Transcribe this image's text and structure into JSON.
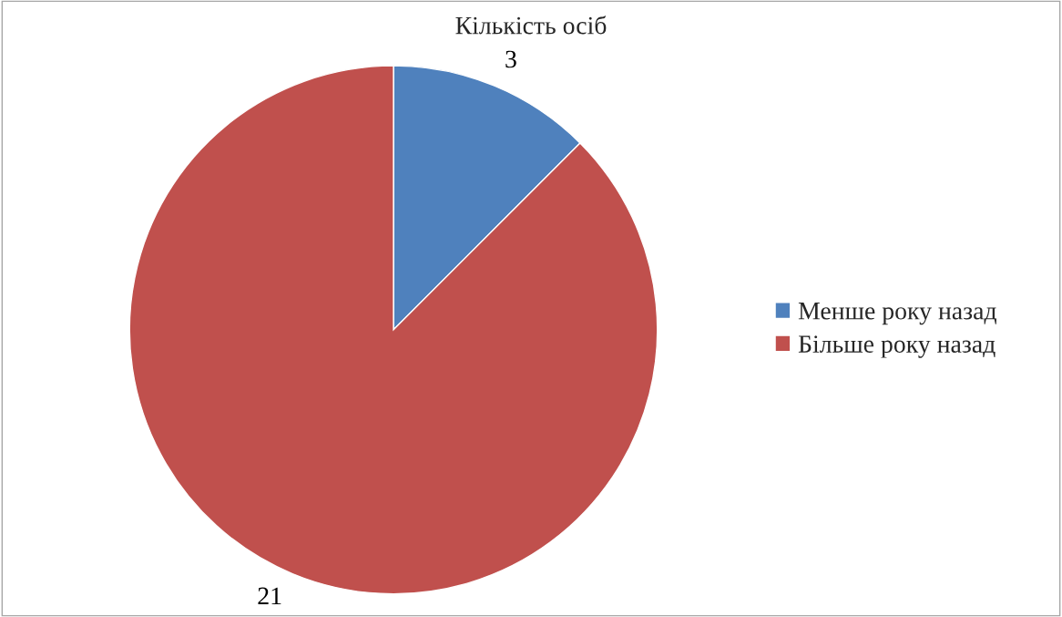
{
  "chart_data": {
    "type": "pie",
    "title": "Кількість осіб",
    "categories": [
      "Менше року назад",
      "Більше року назад"
    ],
    "values": [
      3,
      21
    ],
    "colors": [
      "#4f81bd",
      "#c0504d"
    ],
    "data_labels": true,
    "legend": "right"
  }
}
